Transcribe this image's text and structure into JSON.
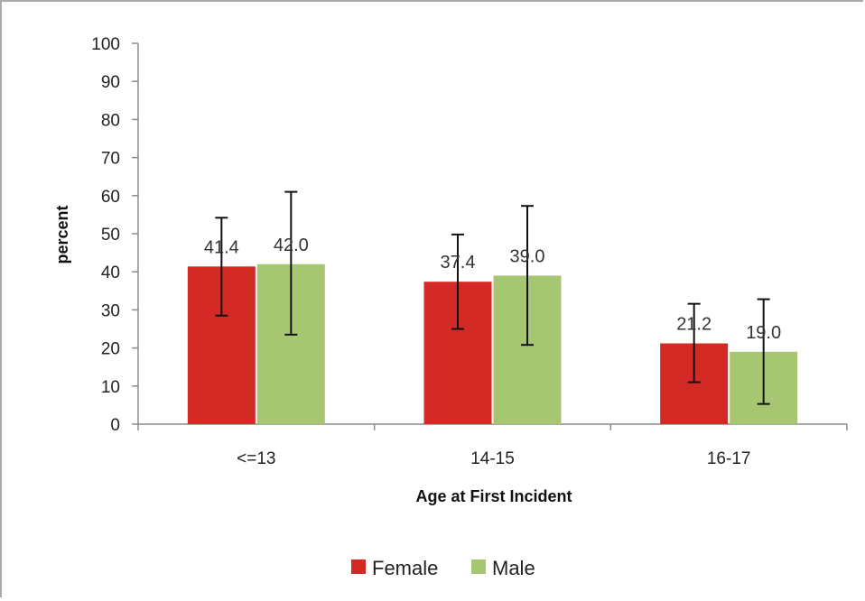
{
  "chart_data": {
    "type": "bar",
    "title": "",
    "xlabel": "Age at First Incident",
    "ylabel": "percent",
    "categories": [
      "<=13",
      "14-15",
      "16-17"
    ],
    "ylim": [
      0,
      100
    ],
    "yticks": [
      0,
      10,
      20,
      30,
      40,
      50,
      60,
      70,
      80,
      90,
      100
    ],
    "grid": false,
    "legend_position": "bottom",
    "series": [
      {
        "name": "Female",
        "color": "#d42a26",
        "values": [
          41.4,
          37.4,
          21.2
        ],
        "labels": [
          "41.4",
          "37.4",
          "21.2"
        ],
        "error_low": [
          28.5,
          25.0,
          11.0
        ],
        "error_high": [
          54.2,
          49.8,
          31.6
        ]
      },
      {
        "name": "Male",
        "color": "#a7c672",
        "values": [
          42.0,
          39.0,
          19.0
        ],
        "labels": [
          "42.0",
          "39.0",
          "19.0"
        ],
        "error_low": [
          23.5,
          20.8,
          5.3
        ],
        "error_high": [
          61.0,
          57.3,
          32.8
        ]
      }
    ]
  }
}
